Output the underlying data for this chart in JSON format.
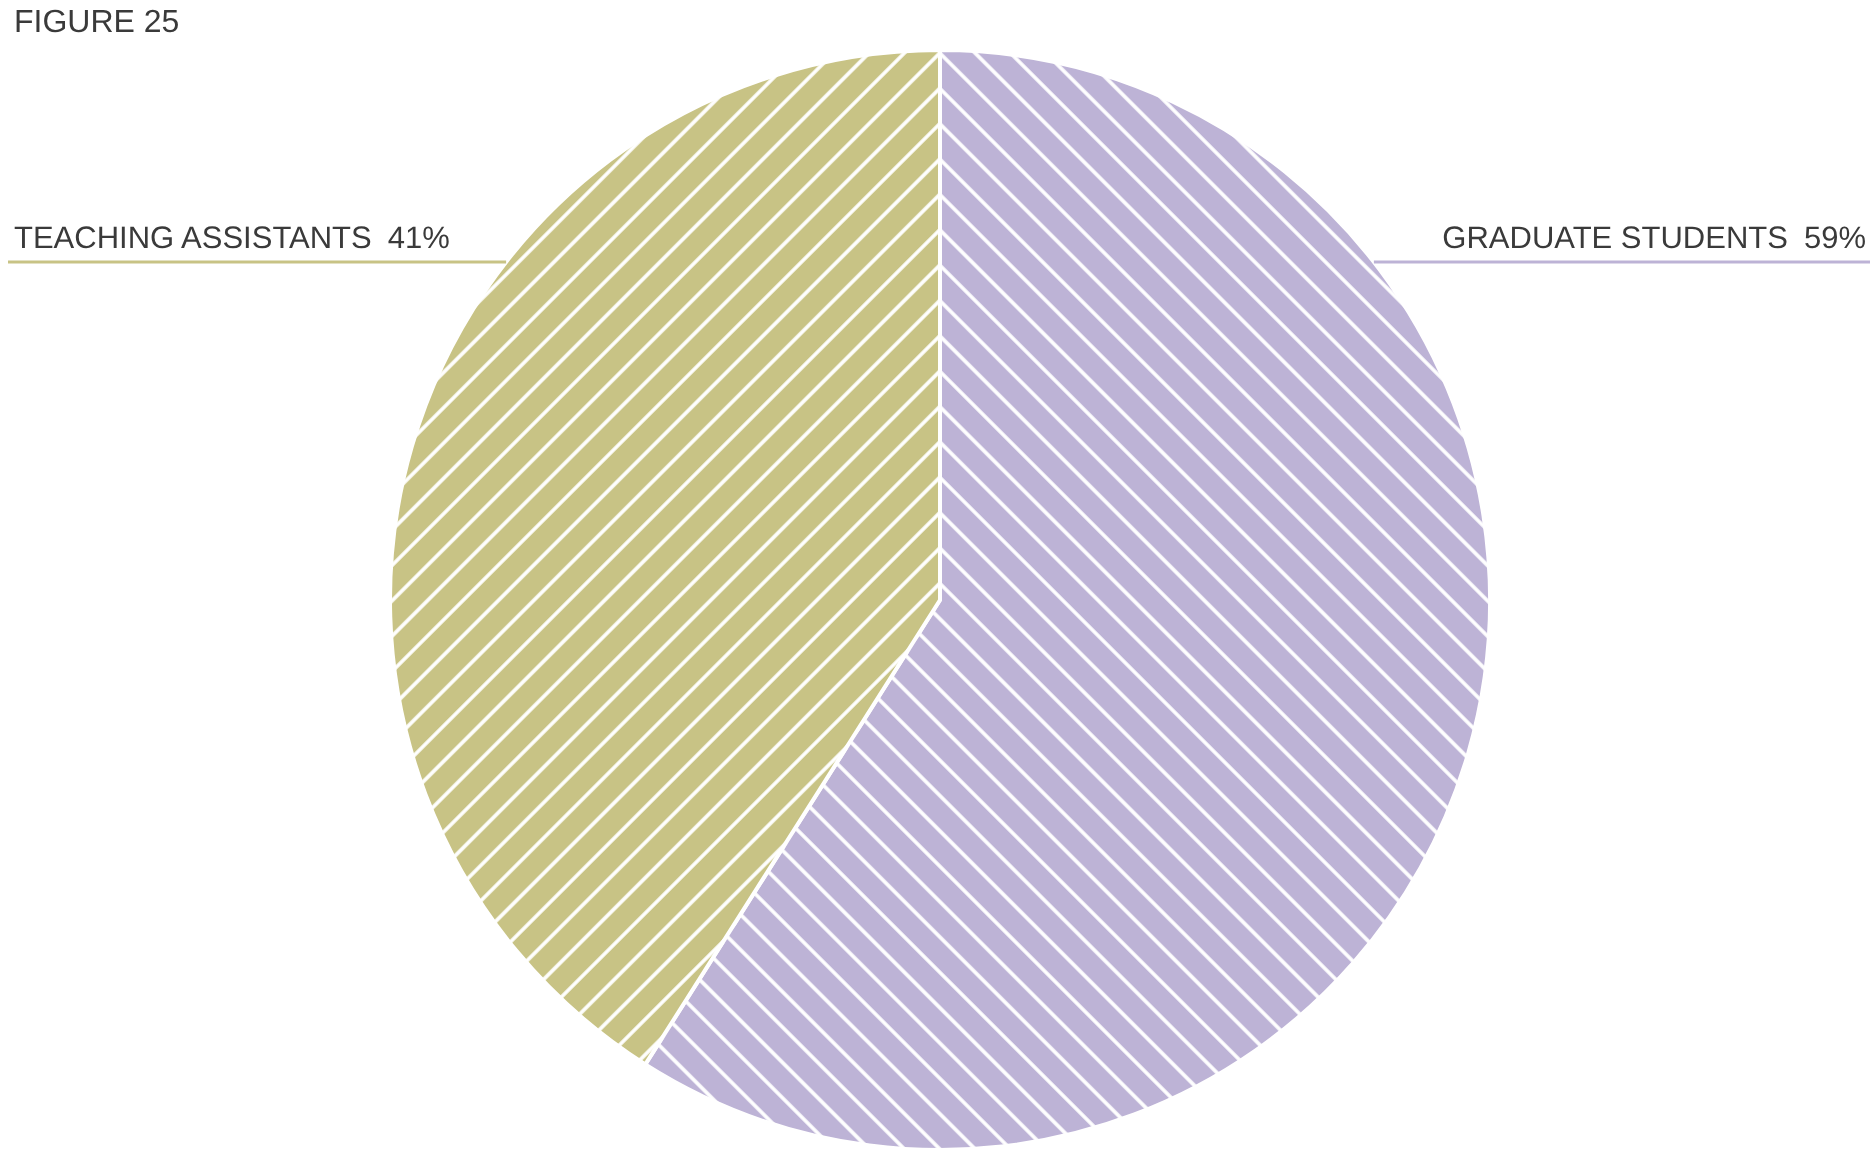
{
  "chart_data": {
    "type": "pie",
    "title": "FIGURE 25",
    "categories": [
      "GRADUATE STUDENTS",
      "TEACHING ASSISTANTS"
    ],
    "values": [
      59,
      41
    ],
    "value_labels": [
      "59%",
      "41%"
    ],
    "colors": [
      "#bdb3d6",
      "#c8c385"
    ],
    "legend": false
  }
}
